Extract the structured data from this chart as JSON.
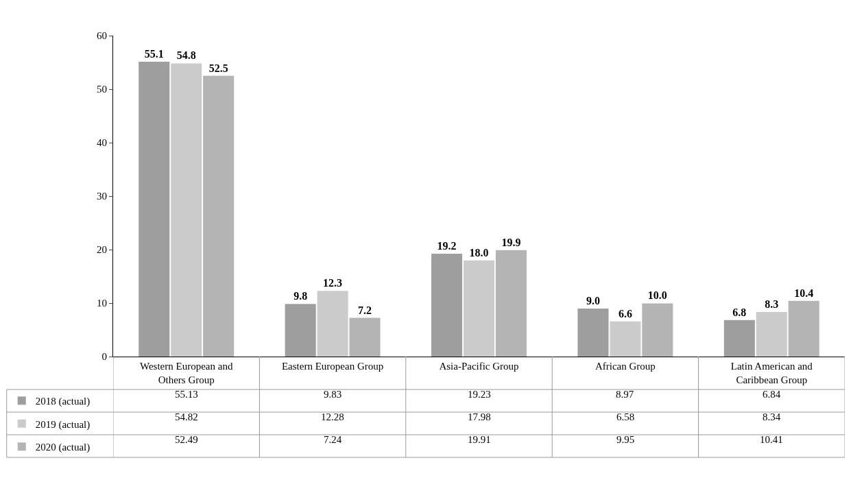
{
  "chart_data": {
    "type": "bar",
    "categories": [
      "Western European and Others Group",
      "Eastern European Group",
      "Asia-Pacific Group",
      "African Group",
      "Latin American and Caribbean Group"
    ],
    "series": [
      {
        "name": "2018 (actual)",
        "color": "#9e9e9e",
        "values": [
          55.13,
          9.83,
          19.23,
          8.97,
          6.84
        ],
        "value_labels": [
          "55.1",
          "9.8",
          "19.2",
          "9.0",
          "6.8"
        ]
      },
      {
        "name": "2019 (actual)",
        "color": "#cbcbcb",
        "values": [
          54.82,
          12.28,
          17.98,
          6.58,
          8.34
        ],
        "value_labels": [
          "54.8",
          "12.3",
          "18.0",
          "6.6",
          "8.3"
        ]
      },
      {
        "name": "2020 (actual)",
        "color": "#b4b4b4",
        "values": [
          52.49,
          7.24,
          19.91,
          9.95,
          10.41
        ],
        "value_labels": [
          "52.5",
          "7.2",
          "19.9",
          "10.0",
          "10.4"
        ]
      }
    ],
    "annotations": [
      "55.13",
      "9.83",
      "19.23",
      "8.97",
      "6.84",
      "54.82",
      "12.28",
      "17.98",
      "6.58",
      "8.34",
      "52.49",
      "7.24",
      "19.91",
      "9.95",
      "10.41"
    ],
    "ylim": [
      0,
      60
    ],
    "yticks": [
      0,
      10,
      20,
      30,
      40,
      50,
      60
    ],
    "legend": "bottom left"
  }
}
